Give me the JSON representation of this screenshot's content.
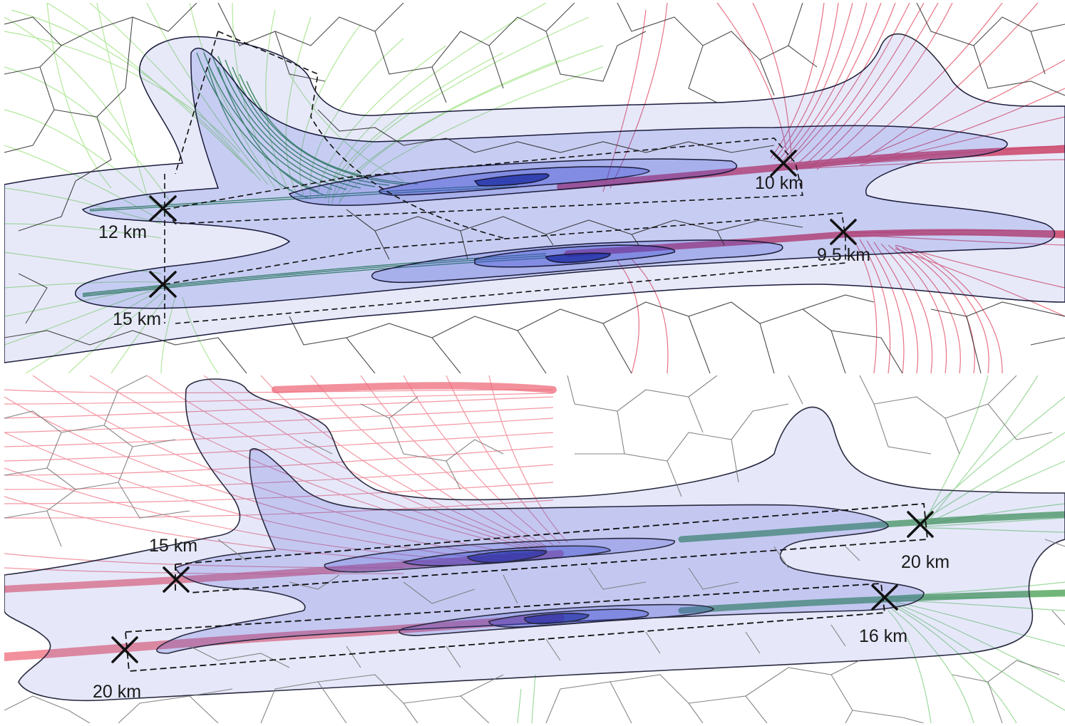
{
  "colors": {
    "background": "#ffffff",
    "cell_borders_top": "#2a2a2a",
    "cell_borders_bottom": "#7a7a7a",
    "contour_fill": "#3a4bd0",
    "contour_stroke": "#1a1a3a",
    "track_green": "#2e8b3e",
    "track_light_green": "#9be37f",
    "track_red": "#e0445a",
    "marker": "#111111"
  },
  "panels": [
    {
      "id": "top",
      "markers": [
        {
          "label": "12 km"
        },
        {
          "label": "15 km"
        },
        {
          "label": "10 km"
        },
        {
          "label": "9.5 km"
        }
      ]
    },
    {
      "id": "bottom",
      "markers": [
        {
          "label": "15 km"
        },
        {
          "label": "20 km"
        },
        {
          "label": "20 km"
        },
        {
          "label": "16 km"
        }
      ]
    }
  ]
}
